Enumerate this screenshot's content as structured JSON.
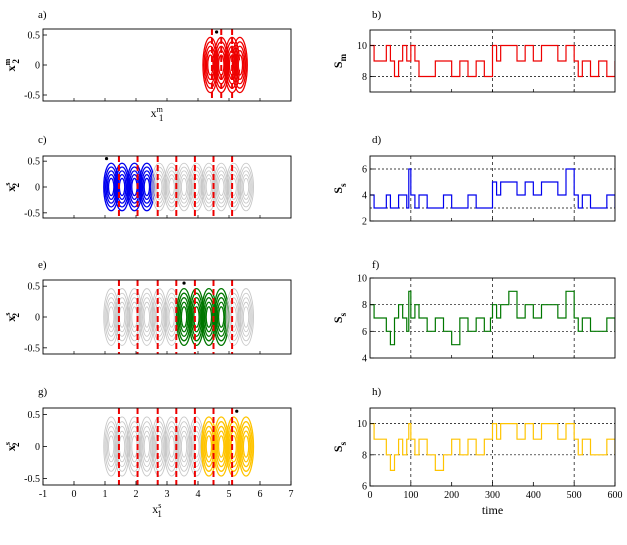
{
  "chart_data": [
    {
      "panel": "a)",
      "type": "scatter",
      "xlim": [
        -1,
        7
      ],
      "ylim": [
        -0.6,
        0.6
      ],
      "yticks": [
        0.5,
        0,
        -0.5
      ],
      "ylabel": "x",
      "ylabel_sub": "2",
      "ylabel_sup": "m",
      "xlabel": "x",
      "xlabel_sub": "1",
      "xlabel_sup": "m",
      "attractor_centers": [
        4.4,
        4.75,
        5.1,
        5.35
      ],
      "attractor_color": "#ee0000",
      "boundaries": [
        4.45,
        4.75,
        5.1
      ],
      "boundary_color": "#ee0000",
      "marker": {
        "x": 4.6,
        "y": 0.55
      }
    },
    {
      "panel": "b)",
      "type": "line",
      "xlim": [
        0,
        600
      ],
      "ylim": [
        7,
        11
      ],
      "yticks": [
        10,
        8
      ],
      "xgrid": [
        100,
        300,
        500
      ],
      "ygrid": [
        10,
        8
      ],
      "ylabel": "S",
      "ylabel_sub": "m",
      "line_color": "#ee0000",
      "x": [
        0,
        10,
        25,
        40,
        50,
        60,
        70,
        80,
        90,
        100,
        110,
        120,
        140,
        160,
        180,
        200,
        220,
        240,
        260,
        280,
        295,
        300,
        310,
        320,
        340,
        360,
        380,
        400,
        420,
        440,
        460,
        480,
        500,
        510,
        520,
        540,
        560,
        580,
        600
      ],
      "y": [
        10,
        9,
        9,
        10,
        9,
        8,
        9,
        10,
        9,
        10,
        9,
        8,
        8,
        9,
        9,
        8,
        9,
        8,
        9,
        8,
        8,
        10,
        9,
        10,
        10,
        9,
        10,
        9,
        10,
        10,
        9,
        10,
        9,
        8,
        9,
        8,
        9,
        8,
        9
      ]
    },
    {
      "panel": "c)",
      "type": "scatter",
      "xlim": [
        -1,
        7
      ],
      "ylim": [
        -0.6,
        0.6
      ],
      "yticks": [
        0.5,
        0,
        -0.5
      ],
      "ylabel": "x",
      "ylabel_sub": "2",
      "ylabel_sup": "s",
      "attractor_centers": [
        1.2,
        1.55,
        1.95,
        2.35,
        2.75,
        3.15,
        3.55,
        3.95,
        4.35,
        4.75,
        5.15,
        5.55
      ],
      "highlight_indices": [
        0,
        1,
        2,
        3
      ],
      "attractor_color": "#0000ee",
      "boundaries": [
        1.45,
        2.05,
        2.7,
        3.3,
        3.9,
        4.5,
        5.1
      ],
      "boundary_color": "#ee0000",
      "marker": {
        "x": 1.05,
        "y": 0.55
      }
    },
    {
      "panel": "d)",
      "type": "line",
      "xlim": [
        0,
        600
      ],
      "ylim": [
        2,
        7
      ],
      "yticks": [
        6,
        4,
        2
      ],
      "xgrid": [
        100,
        300,
        500
      ],
      "ygrid": [
        6,
        3
      ],
      "ylabel": "S",
      "ylabel_sub": "s",
      "line_color": "#0000ee",
      "x": [
        0,
        10,
        25,
        40,
        50,
        60,
        70,
        80,
        90,
        95,
        100,
        110,
        120,
        140,
        160,
        180,
        200,
        220,
        240,
        260,
        280,
        295,
        300,
        310,
        320,
        340,
        360,
        380,
        400,
        420,
        440,
        460,
        480,
        500,
        510,
        520,
        540,
        560,
        580,
        600
      ],
      "y": [
        4,
        3,
        3,
        4,
        3,
        3,
        4,
        4,
        3,
        6,
        4,
        3,
        4,
        3,
        3,
        4,
        3,
        3,
        4,
        3,
        3,
        3,
        5,
        4,
        5,
        5,
        4,
        5,
        4,
        5,
        5,
        4,
        6,
        4,
        3,
        4,
        3,
        3,
        4,
        3
      ]
    },
    {
      "panel": "e)",
      "type": "scatter",
      "xlim": [
        -1,
        7
      ],
      "ylim": [
        -0.6,
        0.6
      ],
      "yticks": [
        0.5,
        0,
        -0.5
      ],
      "ylabel": "x",
      "ylabel_sub": "2",
      "ylabel_sup": "s",
      "attractor_centers": [
        1.2,
        1.55,
        1.95,
        2.35,
        2.75,
        3.15,
        3.55,
        3.95,
        4.35,
        4.75,
        5.15,
        5.55
      ],
      "highlight_indices": [
        6,
        7,
        8,
        9
      ],
      "attractor_color": "#007700",
      "boundaries": [
        1.45,
        2.05,
        2.7,
        3.3,
        3.9,
        4.5,
        5.1
      ],
      "boundary_color": "#ee0000",
      "marker": {
        "x": 3.55,
        "y": 0.55
      }
    },
    {
      "panel": "f)",
      "type": "line",
      "xlim": [
        0,
        600
      ],
      "ylim": [
        4,
        10
      ],
      "yticks": [
        10,
        8,
        6,
        4
      ],
      "xgrid": [
        100,
        300,
        500
      ],
      "ygrid": [
        8,
        6
      ],
      "ylabel": "S",
      "ylabel_sub": "s",
      "line_color": "#007700",
      "x": [
        0,
        10,
        25,
        40,
        50,
        60,
        70,
        80,
        90,
        95,
        100,
        110,
        120,
        140,
        160,
        180,
        200,
        220,
        240,
        260,
        280,
        295,
        300,
        310,
        320,
        340,
        360,
        380,
        400,
        420,
        440,
        460,
        480,
        500,
        510,
        520,
        540,
        560,
        580,
        600
      ],
      "y": [
        8,
        7,
        7,
        6,
        5,
        7,
        8,
        7,
        6,
        9,
        7,
        8,
        7,
        6,
        7,
        6,
        5,
        7,
        6,
        7,
        6,
        7,
        8,
        7,
        8,
        9,
        7,
        8,
        7,
        8,
        8,
        7,
        9,
        7,
        6,
        7,
        6,
        6,
        7,
        6
      ]
    },
    {
      "panel": "g)",
      "type": "scatter",
      "xlim": [
        -1,
        7
      ],
      "ylim": [
        -0.6,
        0.6
      ],
      "xticks": [
        -1,
        0,
        1,
        2,
        3,
        4,
        5,
        6,
        7
      ],
      "yticks": [
        0.5,
        0,
        -0.5
      ],
      "ylabel": "x",
      "ylabel_sub": "2",
      "ylabel_sup": "s",
      "xlabel": "x",
      "xlabel_sub": "1",
      "xlabel_sup": "s",
      "attractor_centers": [
        1.2,
        1.55,
        1.95,
        2.35,
        2.75,
        3.15,
        3.55,
        3.95,
        4.35,
        4.75,
        5.15,
        5.55
      ],
      "highlight_indices": [
        8,
        9,
        10,
        11
      ],
      "attractor_color": "#ffc400",
      "boundaries": [
        1.45,
        2.05,
        2.7,
        3.3,
        3.9,
        4.5,
        5.1
      ],
      "boundary_color": "#ee0000",
      "marker": {
        "x": 5.25,
        "y": 0.55
      }
    },
    {
      "panel": "h)",
      "type": "line",
      "xlim": [
        0,
        600
      ],
      "ylim": [
        6,
        11
      ],
      "xticks": [
        0,
        100,
        200,
        300,
        400,
        500,
        600
      ],
      "yticks": [
        10,
        8,
        6
      ],
      "xgrid": [
        100,
        300,
        500
      ],
      "ygrid": [
        10,
        8
      ],
      "ylabel": "S",
      "ylabel_sub": "s",
      "xlabel": "time",
      "line_color": "#ffc400",
      "x": [
        0,
        10,
        25,
        40,
        50,
        60,
        70,
        80,
        90,
        95,
        100,
        110,
        120,
        140,
        160,
        180,
        200,
        220,
        240,
        260,
        280,
        295,
        300,
        310,
        320,
        340,
        360,
        380,
        400,
        420,
        440,
        460,
        480,
        500,
        510,
        520,
        540,
        560,
        580,
        600
      ],
      "y": [
        10,
        9,
        9,
        8,
        7,
        8,
        9,
        8,
        9,
        10,
        9,
        8,
        9,
        8,
        7,
        8,
        9,
        8,
        9,
        8,
        9,
        9,
        10,
        9,
        10,
        10,
        9,
        10,
        9,
        10,
        10,
        9,
        10,
        9,
        8,
        9,
        8,
        8,
        9,
        8
      ]
    }
  ]
}
